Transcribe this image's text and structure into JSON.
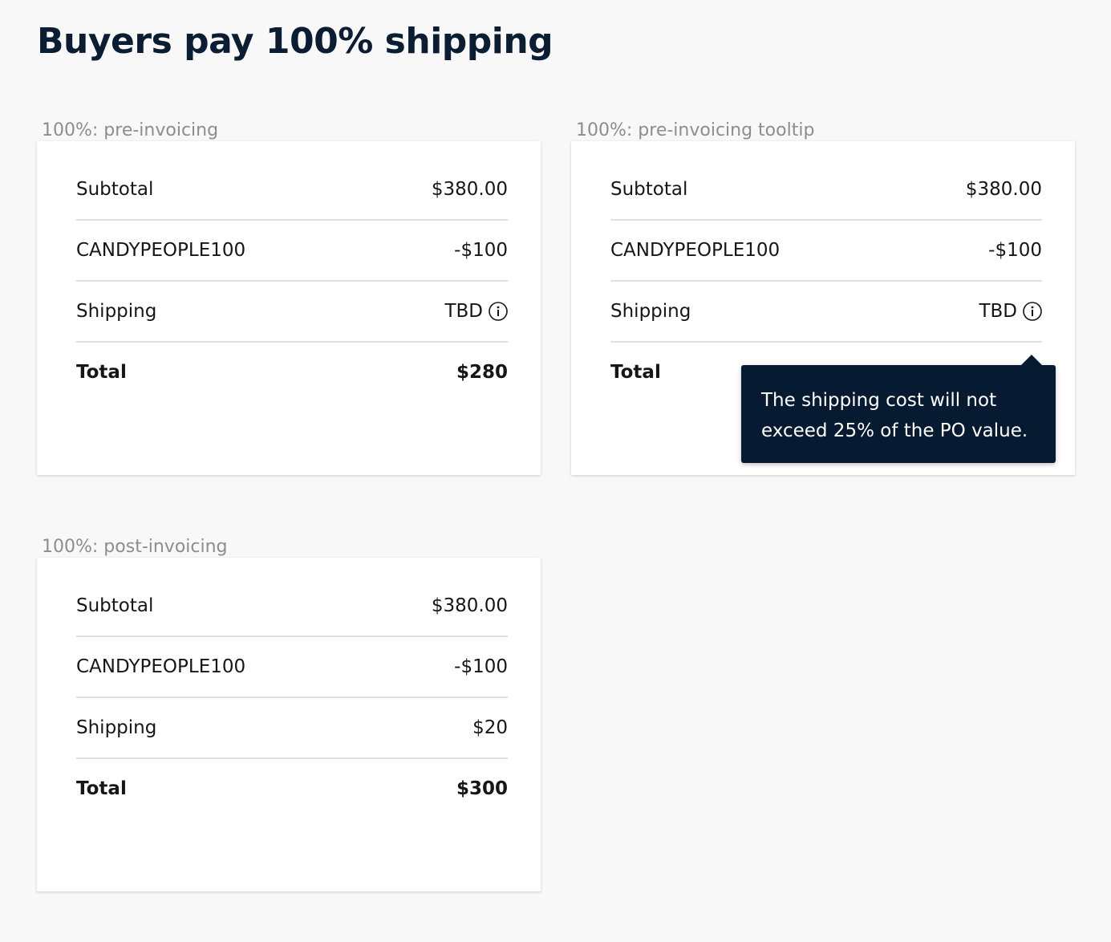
{
  "page": {
    "title": "Buyers pay 100% shipping"
  },
  "sections": [
    {
      "label": "100%: pre-invoicing",
      "rows": [
        {
          "label": "Subtotal",
          "value": "$380.00"
        },
        {
          "label": "CANDYPEOPLE100",
          "value": "-$100"
        },
        {
          "label": "Shipping",
          "value": "TBD",
          "icon": "info-icon"
        },
        {
          "label": "Total",
          "value": "$280"
        }
      ]
    },
    {
      "label": "100%: pre-invoicing tooltip",
      "rows": [
        {
          "label": "Subtotal",
          "value": "$380.00"
        },
        {
          "label": "CANDYPEOPLE100",
          "value": "-$100"
        },
        {
          "label": "Shipping",
          "value": "TBD",
          "icon": "info-icon"
        },
        {
          "label": "Total",
          "value": ""
        }
      ],
      "tooltip": {
        "line1": "The shipping cost will not",
        "line2": "exceed 25% of the PO value."
      }
    },
    {
      "label": "100%: post-invoicing",
      "rows": [
        {
          "label": "Subtotal",
          "value": "$380.00"
        },
        {
          "label": "CANDYPEOPLE100",
          "value": "-$100"
        },
        {
          "label": "Shipping",
          "value": "$20"
        },
        {
          "label": "Total",
          "value": "$300"
        }
      ]
    }
  ],
  "colors": {
    "background": "#f8f8f8",
    "card": "#ffffff",
    "title": "#0b1d33",
    "label_muted": "#8d8d8d",
    "divider": "#e0e0e0",
    "tooltip_bg": "#061b31",
    "tooltip_text": "#ffffff"
  }
}
